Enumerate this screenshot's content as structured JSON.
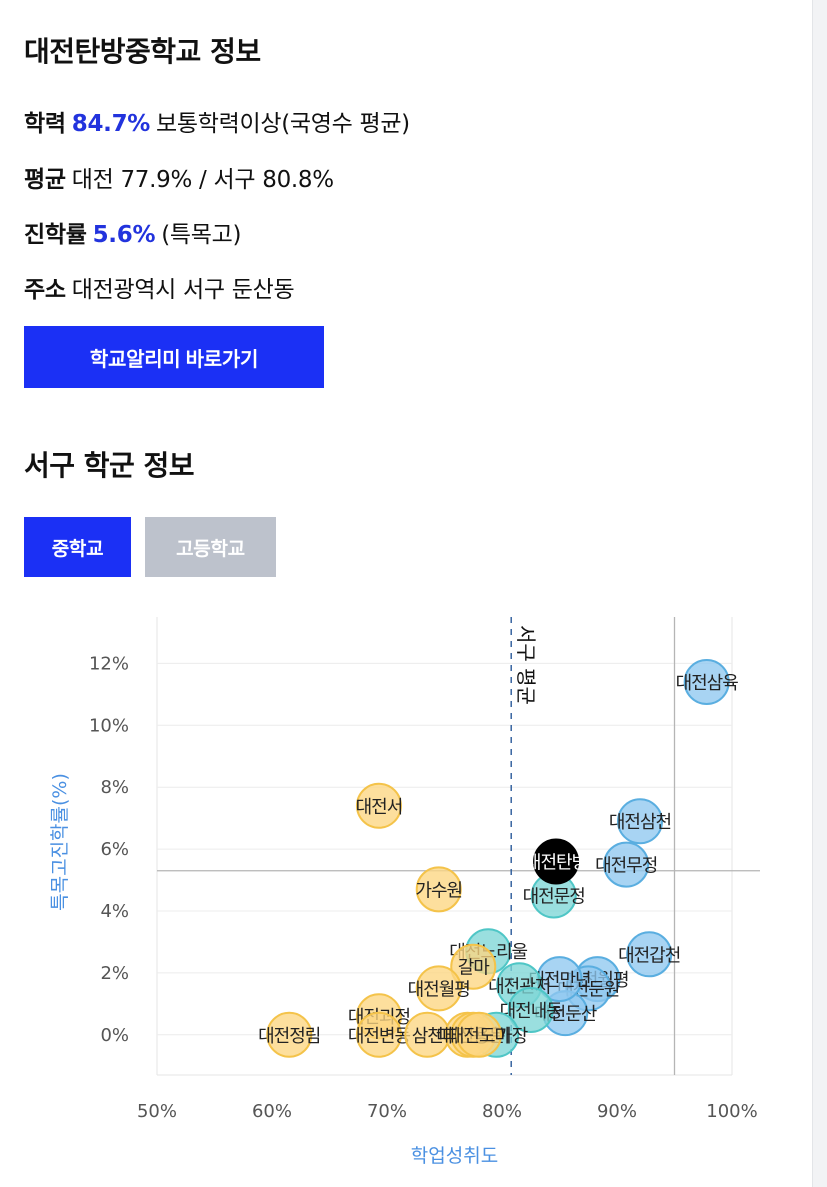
{
  "school": {
    "title": "대전탄방중학교 정보",
    "academic": {
      "label": "학력",
      "value": "84.7%",
      "desc": "보통학력이상(국영수 평균)"
    },
    "average": {
      "label": "평균",
      "value": "대전 77.9% / 서구 80.8%"
    },
    "advancement": {
      "label": "진학률",
      "value": "5.6%",
      "desc": "(특목고)"
    },
    "address": {
      "label": "주소",
      "value": "대전광역시 서구 둔산동"
    },
    "link_label": "학교알리미 바로가기"
  },
  "district": {
    "title": "서구 학군 정보",
    "tabs": [
      {
        "label": "중학교",
        "active": true
      },
      {
        "label": "고등학교",
        "active": false
      }
    ]
  },
  "colors": {
    "accent": "#1b30f5",
    "highlight_text": "#2233dd",
    "axis_label": "#4a90e2",
    "yellow": "#fcd681",
    "blue": "#8fc8ef",
    "teal": "#7ed6d6",
    "selected": "#000000"
  },
  "chart_data": {
    "type": "scatter",
    "xlabel": "학업성취도",
    "ylabel": "특목고진학률(%)",
    "xlim": [
      50,
      100
    ],
    "ylim": [
      -1.3,
      13.5
    ],
    "xticks": [
      "50%",
      "60%",
      "70%",
      "80%",
      "90%",
      "100%"
    ],
    "yticks": [
      "0%",
      "2%",
      "4%",
      "6%",
      "8%",
      "10%",
      "12%"
    ],
    "reference_lines": {
      "x_avg": 80.8,
      "x_avg_label": "서구 평균",
      "x_ref": 95,
      "y_ref": 5.3
    },
    "points": [
      {
        "name": "대전삼육",
        "x": 97.8,
        "y": 11.4,
        "group": "blue"
      },
      {
        "name": "대전삼천",
        "x": 92.0,
        "y": 6.9,
        "group": "blue"
      },
      {
        "name": "대전무정",
        "x": 90.8,
        "y": 5.5,
        "group": "blue"
      },
      {
        "name": "대전갑천",
        "x": 92.8,
        "y": 2.6,
        "group": "blue"
      },
      {
        "name": "대전월평",
        "x": 88.3,
        "y": 1.8,
        "group": "blue"
      },
      {
        "name": "대전둔원",
        "x": 87.5,
        "y": 1.5,
        "group": "blue"
      },
      {
        "name": "대전둔산",
        "x": 85.5,
        "y": 0.7,
        "group": "blue"
      },
      {
        "name": "대전만년",
        "x": 85.0,
        "y": 1.8,
        "group": "blue"
      },
      {
        "name": "대전탄방",
        "x": 84.7,
        "y": 5.6,
        "group": "selected"
      },
      {
        "name": "대전문정",
        "x": 84.5,
        "y": 4.5,
        "group": "teal"
      },
      {
        "name": "대전느리울",
        "x": 78.8,
        "y": 2.7,
        "group": "teal"
      },
      {
        "name": "대전관저",
        "x": 81.5,
        "y": 1.6,
        "group": "teal"
      },
      {
        "name": "대전내동",
        "x": 82.5,
        "y": 0.8,
        "group": "teal"
      },
      {
        "name": "대전가장",
        "x": 79.5,
        "y": 0.0,
        "group": "teal"
      },
      {
        "name": "대전서",
        "x": 69.3,
        "y": 7.4,
        "group": "yellow"
      },
      {
        "name": "가수원",
        "x": 74.5,
        "y": 4.7,
        "group": "yellow"
      },
      {
        "name": "갈마",
        "x": 77.5,
        "y": 2.2,
        "group": "yellow"
      },
      {
        "name": "대전월평",
        "x": 74.5,
        "y": 1.5,
        "group": "yellow"
      },
      {
        "name": "대전괴정",
        "x": 69.3,
        "y": 0.6,
        "group": "yellow"
      },
      {
        "name": "대전정림",
        "x": 61.5,
        "y": 0.0,
        "group": "yellow"
      },
      {
        "name": "대전변동",
        "x": 69.3,
        "y": 0.0,
        "group": "yellow"
      },
      {
        "name": "삼천",
        "x": 73.5,
        "y": 0.0,
        "group": "yellow"
      },
      {
        "name": "대전동산",
        "x": 77.0,
        "y": 0.0,
        "group": "yellow"
      },
      {
        "name": "대전용문",
        "x": 77.5,
        "y": 0.0,
        "group": "yellow"
      },
      {
        "name": "대전도마",
        "x": 78.0,
        "y": 0.0,
        "group": "yellow"
      }
    ]
  }
}
